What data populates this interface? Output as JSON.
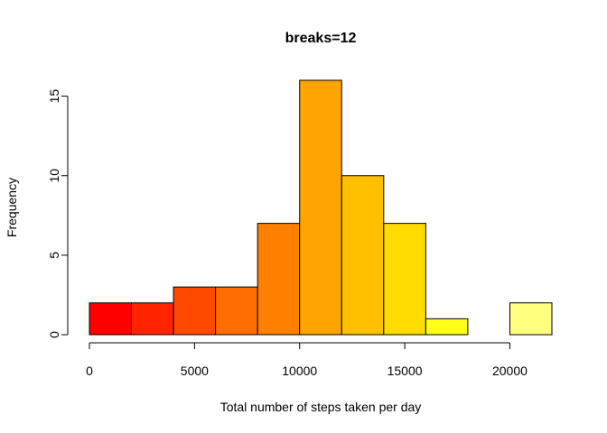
{
  "chart_data": {
    "type": "bar",
    "title": "breaks=12",
    "xlabel": "Total number of steps taken per day",
    "ylabel": "Frequency",
    "bin_edges": [
      0,
      2000,
      4000,
      6000,
      8000,
      10000,
      12000,
      14000,
      16000,
      18000,
      20000,
      22000
    ],
    "values": [
      2,
      2,
      3,
      3,
      7,
      16,
      10,
      7,
      1,
      0,
      2
    ],
    "colors": [
      "#FF0000",
      "#FF2400",
      "#FF4900",
      "#FF6D00",
      "#FF8000",
      "#FFA400",
      "#FFC000",
      "#FFDB00",
      "#FFFF18",
      "#FFFF3F",
      "#FFFF80"
    ],
    "x_ticks": [
      0,
      5000,
      10000,
      15000,
      20000
    ],
    "y_ticks": [
      0,
      5,
      10,
      15
    ],
    "xlim": [
      0,
      22000
    ],
    "ylim": [
      0,
      16
    ],
    "grid": false
  }
}
